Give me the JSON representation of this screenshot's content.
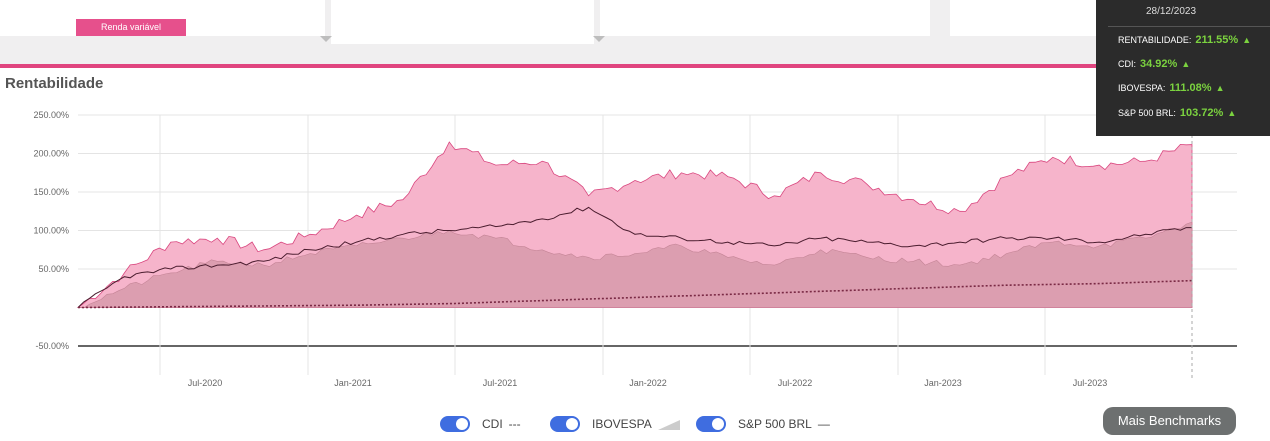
{
  "header": {
    "badge_label": "Renda variável"
  },
  "section_title": "Rentabilidade",
  "tooltip": {
    "date": "28/12/2023",
    "rows": [
      {
        "label": "RENTABILIDADE:",
        "value": "211.55%"
      },
      {
        "label": "CDI:",
        "value": "34.92%"
      },
      {
        "label": "IBOVESPA:",
        "value": "111.08%"
      },
      {
        "label": "S&P 500 BRL:",
        "value": "103.72%"
      }
    ]
  },
  "legend": [
    {
      "label": "CDI",
      "symbol": "---"
    },
    {
      "label": "IBOVESPA",
      "symbol": "area"
    },
    {
      "label": "S&P 500 BRL",
      "symbol": "—"
    }
  ],
  "more_button": "Mais Benchmarks",
  "colors": {
    "portfolio_fill": "#f6b4cb",
    "portfolio_line": "#d9477f",
    "ibovespa_fill": "#d79aab",
    "sp500_line": "#4a1c2e",
    "cdi_line": "#7a2a45",
    "accent": "#e0457f"
  },
  "chart_data": {
    "type": "area",
    "ylim": [
      -50,
      250
    ],
    "y_ticks": [
      "250.00%",
      "200.00%",
      "150.00%",
      "100.00%",
      "50.00%",
      "-50.00%"
    ],
    "x_ticks": [
      "Jul-2020",
      "Jan-2021",
      "Jul-2021",
      "Jan-2022",
      "Jul-2022",
      "Jan-2023",
      "Jul-2023"
    ],
    "x": [
      "2020-01",
      "2020-03",
      "2020-05",
      "2020-07",
      "2020-09",
      "2020-11",
      "2021-01",
      "2021-03",
      "2021-05",
      "2021-07",
      "2021-09",
      "2021-11",
      "2022-01",
      "2022-03",
      "2022-05",
      "2022-07",
      "2022-09",
      "2022-11",
      "2023-01",
      "2023-03",
      "2023-05",
      "2023-07",
      "2023-09",
      "2023-11",
      "2023-12"
    ],
    "series": [
      {
        "name": "RENTABILIDADE",
        "values": [
          0,
          45,
          85,
          90,
          75,
          95,
          120,
          140,
          215,
          185,
          190,
          145,
          165,
          175,
          170,
          145,
          175,
          160,
          140,
          125,
          170,
          195,
          185,
          190,
          211.55
        ]
      },
      {
        "name": "IBOVESPA",
        "values": [
          0,
          25,
          45,
          60,
          55,
          70,
          80,
          90,
          100,
          90,
          75,
          65,
          70,
          80,
          65,
          55,
          75,
          65,
          60,
          55,
          70,
          85,
          80,
          90,
          111.08
        ]
      },
      {
        "name": "S&P 500 BRL",
        "values": [
          0,
          40,
          50,
          55,
          60,
          75,
          85,
          95,
          100,
          105,
          115,
          130,
          95,
          90,
          85,
          80,
          90,
          85,
          80,
          85,
          90,
          90,
          85,
          95,
          103.72
        ]
      },
      {
        "name": "CDI",
        "values": [
          0,
          0.5,
          1,
          1.5,
          2,
          2.5,
          3,
          4,
          5,
          7,
          9,
          11,
          13,
          15,
          17,
          19,
          21,
          23,
          25,
          27,
          29,
          30,
          31,
          33,
          34.92
        ]
      }
    ]
  }
}
